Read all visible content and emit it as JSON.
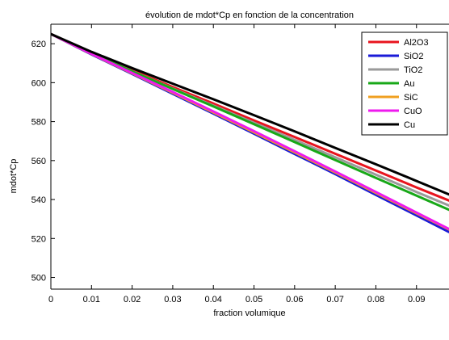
{
  "chart_data": {
    "type": "line",
    "title": "évolution de mdot*Cp en fonction de la concentration",
    "xlabel": "fraction volumique",
    "ylabel": "mdot*Cp",
    "xlim": [
      0,
      0.098
    ],
    "ylim": [
      494,
      630
    ],
    "xticks": [
      "0",
      "0.01",
      "0.02",
      "0.03",
      "0.04",
      "0.05",
      "0.06",
      "0.07",
      "0.08",
      "0.09"
    ],
    "xtick_values": [
      0,
      0.01,
      0.02,
      0.03,
      0.04,
      0.05,
      0.06,
      0.07,
      0.08,
      0.09
    ],
    "yticks": [
      "500",
      "520",
      "540",
      "560",
      "580",
      "600",
      "620"
    ],
    "ytick_values": [
      500,
      520,
      540,
      560,
      580,
      600,
      620
    ],
    "grid": false,
    "legend_position": "top-right",
    "x": [
      0,
      0.01,
      0.02,
      0.03,
      0.04,
      0.05,
      0.06,
      0.07,
      0.08,
      0.09,
      0.098
    ],
    "series": [
      {
        "name": "Al2O3",
        "color": "#e8141e",
        "values": [
          625.0,
          615.3,
          606.4,
          597.8,
          589.3,
          580.6,
          572.1,
          563.5,
          554.9,
          546.2,
          539.5
        ]
      },
      {
        "name": "SiO2",
        "color": "#1a1ad8",
        "values": [
          625.0,
          614.5,
          604.5,
          594.3,
          584.1,
          573.8,
          563.4,
          553.1,
          542.4,
          531.8,
          523.3
        ]
      },
      {
        "name": "TiO2",
        "color": "#9a9a9a",
        "values": [
          625.0,
          615.1,
          605.9,
          597.0,
          588.2,
          579.4,
          570.6,
          561.7,
          552.8,
          543.9,
          536.9
        ]
      },
      {
        "name": "Au",
        "color": "#18a818",
        "values": [
          625.0,
          615.0,
          605.8,
          596.8,
          587.8,
          578.7,
          569.5,
          560.3,
          551.1,
          542.0,
          534.7
        ]
      },
      {
        "name": "SiC",
        "color": "#f0a020",
        "values": [
          625.0,
          614.7,
          604.8,
          594.8,
          584.7,
          574.5,
          564.2,
          553.9,
          543.4,
          532.9,
          524.6
        ]
      },
      {
        "name": "CuO",
        "color": "#ee1aee",
        "values": [
          625.0,
          614.8,
          605.0,
          595.2,
          585.2,
          575.1,
          564.8,
          554.4,
          543.9,
          533.3,
          524.9
        ]
      },
      {
        "name": "Cu",
        "color": "#000000",
        "values": [
          625.0,
          615.8,
          607.5,
          599.5,
          591.5,
          583.3,
          575.0,
          566.5,
          558.1,
          549.5,
          542.6
        ]
      }
    ]
  }
}
